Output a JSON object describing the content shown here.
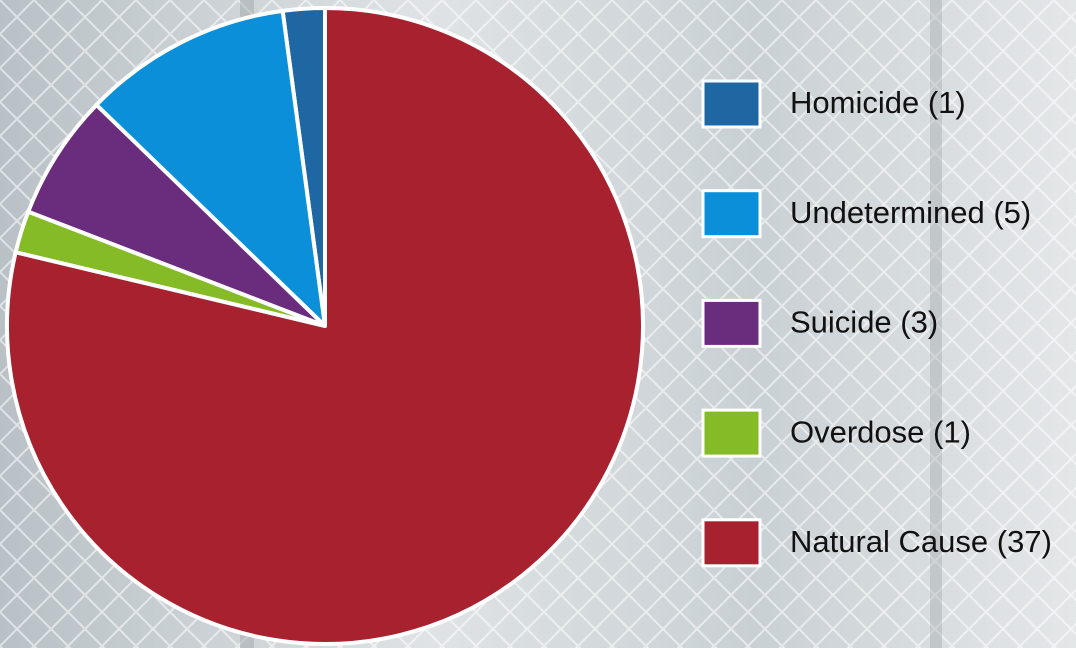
{
  "chart_data": {
    "type": "pie",
    "categories": [
      "Homicide (1)",
      "Undetermined (5)",
      "Suicide (3)",
      "Overdose (1)",
      "Natural Cause (37)"
    ],
    "values": [
      1,
      5,
      3,
      1,
      37
    ],
    "colors": [
      "#1f67a3",
      "#0a8fd8",
      "#6a2c7c",
      "#84bb26",
      "#a7212f"
    ],
    "legend": "right"
  }
}
